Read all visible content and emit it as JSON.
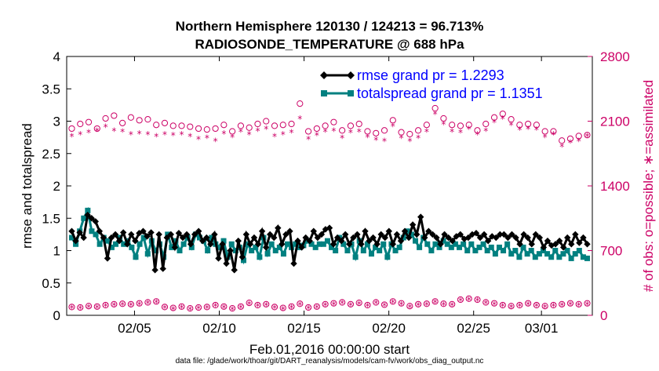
{
  "colors": {
    "rmse": "#000000",
    "spread": "#008080",
    "obs": "#cc0066",
    "legend_text": "#0000ff",
    "right_axis": "#cc0066"
  },
  "chart_data": {
    "type": "line",
    "title": "Northern Hemisphere 120130 / 124213 = 96.713%",
    "subtitle": "RADIOSONDE_TEMPERATURE @ 688 hPa",
    "xlabel": "Feb.01,2016 00:00:00 start",
    "ylabel": "rmse and totalspread",
    "ylabel_right": "# of obs: o=possible; ∗=assimilated",
    "footnote": "data file: /glade/work/thoar/git/DART_reanalysis/models/cam-fv/work/obs_diag_output.nc",
    "x_range_days": [
      1,
      32
    ],
    "ylim": [
      0,
      4
    ],
    "ylim_right": [
      0,
      2800
    ],
    "x_ticks": [
      {
        "day": 5,
        "label": "02/05"
      },
      {
        "day": 10,
        "label": "02/10"
      },
      {
        "day": 15,
        "label": "02/15"
      },
      {
        "day": 20,
        "label": "02/20"
      },
      {
        "day": 25,
        "label": "02/25"
      },
      {
        "day": 29,
        "label": "03/01"
      }
    ],
    "y_ticks": [
      "0",
      "0.5",
      "1",
      "1.5",
      "2",
      "2.5",
      "3",
      "3.5",
      "4"
    ],
    "y_ticks_right": [
      "0",
      "700",
      "1400",
      "2100",
      "2800"
    ],
    "legend": [
      "rmse grand pr = 1.2293",
      "totalspread grand pr = 1.1351"
    ],
    "legend_placement": "top-right",
    "grid": false,
    "series": [
      {
        "name": "rmse grand pr = 1.2293",
        "values": [
          1.3,
          1.15,
          1.28,
          1.2,
          1.55,
          1.5,
          1.45,
          1.3,
          1.2,
          0.88,
          1.2,
          1.25,
          1.15,
          1.28,
          1.1,
          1.25,
          1.15,
          1.27,
          1.3,
          1.22,
          1.28,
          0.7,
          1.25,
          0.72,
          1.2,
          1.25,
          1.05,
          1.27,
          1.2,
          1.25,
          1.1,
          1.25,
          1.3,
          1.15,
          1.2,
          1.1,
          1.25,
          0.88,
          1.1,
          0.8,
          1.0,
          0.7,
          1.15,
          0.9,
          1.25,
          1.1,
          1.2,
          1.1,
          1.3,
          1.05,
          1.25,
          1.2,
          1.35,
          1.1,
          1.25,
          1.3,
          0.8,
          1.15,
          1.05,
          1.2,
          1.15,
          1.3,
          1.2,
          1.25,
          1.33,
          1.35,
          1.1,
          1.2,
          1.15,
          1.25,
          1.1,
          1.2,
          1.25,
          1.1,
          1.3,
          1.15,
          1.2,
          1.1,
          1.25,
          1.2,
          1.3,
          1.1,
          1.25,
          1.15,
          1.3,
          1.2,
          1.4,
          1.25,
          1.52,
          1.2,
          1.3,
          1.25,
          1.2,
          1.1,
          1.25,
          1.2,
          1.15,
          1.22,
          1.25,
          1.18,
          1.2,
          1.25,
          1.27,
          1.2,
          1.25,
          1.15,
          1.22,
          1.2,
          1.25,
          1.25,
          1.2,
          1.25,
          1.2,
          1.1,
          1.25,
          1.2,
          1.1,
          1.25,
          1.2,
          1.05,
          1.15,
          1.08,
          1.1,
          1.15,
          1.05,
          1.2,
          1.1,
          1.25,
          1.12,
          1.2,
          1.1
        ]
      },
      {
        "name": "totalspread grand pr = 1.1351",
        "values": [
          1.2,
          1.1,
          1.3,
          1.5,
          1.62,
          1.3,
          1.25,
          1.1,
          1.2,
          1.15,
          1.05,
          1.1,
          1.2,
          1.1,
          1.15,
          1.05,
          0.9,
          1.1,
          1.2,
          0.95,
          1.15,
          1.0,
          1.1,
          0.9,
          1.25,
          1.05,
          1.15,
          1.0,
          1.1,
          1.2,
          1.05,
          1.25,
          1.2,
          1.15,
          1.0,
          1.2,
          1.1,
          1.05,
          1.15,
          0.9,
          1.1,
          1.0,
          1.05,
          0.85,
          1.1,
          1.0,
          1.05,
          0.9,
          1.2,
          0.95,
          1.1,
          1.0,
          1.05,
          0.95,
          1.1,
          1.05,
          1.1,
          1.05,
          1.08,
          1.15,
          1.1,
          1.05,
          1.1,
          1.1,
          1.15,
          1.05,
          1.0,
          1.2,
          1.1,
          1.0,
          1.1,
          0.9,
          1.15,
          1.0,
          1.1,
          0.95,
          1.05,
          1.0,
          1.1,
          0.9,
          1.1,
          1.0,
          1.05,
          1.2,
          1.3,
          1.25,
          1.15,
          1.05,
          1.2,
          1.1,
          1.0,
          1.1,
          1.05,
          1.15,
          1.1,
          1.05,
          1.1,
          1.05,
          1.1,
          1.0,
          1.1,
          1.0,
          1.05,
          1.1,
          1.0,
          1.05,
          0.95,
          1.05,
          1.0,
          1.1,
          0.95,
          1.0,
          0.9,
          1.05,
          0.95,
          1.0,
          0.9,
          0.95,
          1.0,
          0.95,
          0.9,
          1.0,
          0.9,
          0.95,
          1.0,
          0.88,
          0.95,
          1.0,
          0.9,
          0.88
        ]
      },
      {
        "name": "",
        "values": [
          2020,
          2070,
          2090,
          2020,
          2130,
          2160,
          2080,
          2140,
          2110,
          2120,
          2060,
          2080,
          2050,
          2050,
          2040,
          2020,
          2010,
          2020,
          2060,
          1990,
          2050,
          2030,
          2070,
          2100,
          2050,
          2060,
          2070,
          2290,
          1990,
          2020,
          2050,
          2090,
          2000,
          2050,
          2070,
          1990,
          1970,
          2000,
          2110,
          1980,
          1960,
          2000,
          2060,
          2240,
          2130,
          2060,
          2050,
          2060,
          2000,
          2070,
          2140,
          2180,
          2120,
          2060,
          2070,
          2060,
          1990,
          1990,
          1890,
          1910,
          1940,
          1950
        ]
      },
      {
        "name": "",
        "values": [
          1940,
          1960,
          1980,
          2000,
          2040,
          2000,
          1990,
          1960,
          1970,
          1960,
          1940,
          1960,
          1950,
          1960,
          1940,
          1910,
          1920,
          1890,
          1970,
          1930,
          1990,
          1960,
          2000,
          2020,
          1940,
          1960,
          1980,
          2130,
          1910,
          1950,
          1990,
          2000,
          1920,
          1980,
          1990,
          1930,
          1900,
          1890,
          2050,
          1920,
          1890,
          1920,
          1990,
          2180,
          2070,
          1990,
          1980,
          2020,
          1960,
          2000,
          2090,
          2130,
          2060,
          2010,
          2020,
          2010,
          1930,
          1960,
          1830,
          1870,
          1890,
          1940
        ]
      },
      {
        "name": "",
        "values": [
          90,
          85,
          100,
          95,
          110,
          120,
          125,
          120,
          130,
          140,
          150,
          90,
          80,
          95,
          75,
          85,
          90,
          110,
          95,
          75,
          95,
          135,
          110,
          120,
          90,
          80,
          95,
          125,
          85,
          95,
          120,
          130,
          140,
          120,
          135,
          110,
          140,
          115,
          150,
          130,
          100,
          120,
          125,
          150,
          125,
          120,
          170,
          180,
          170,
          140,
          130,
          110,
          100,
          110,
          130,
          110,
          100,
          110,
          120,
          130,
          120,
          130
        ]
      },
      {
        "name": "",
        "values": [
          80,
          75,
          90,
          85,
          100,
          110,
          115,
          110,
          120,
          130,
          140,
          80,
          70,
          85,
          65,
          75,
          80,
          100,
          85,
          65,
          85,
          125,
          100,
          110,
          80,
          70,
          85,
          115,
          75,
          85,
          110,
          120,
          130,
          110,
          125,
          100,
          130,
          105,
          140,
          120,
          90,
          110,
          115,
          140,
          115,
          110,
          160,
          170,
          160,
          130,
          120,
          100,
          90,
          100,
          120,
          100,
          90,
          100,
          110,
          120,
          110,
          120
        ]
      }
    ]
  }
}
